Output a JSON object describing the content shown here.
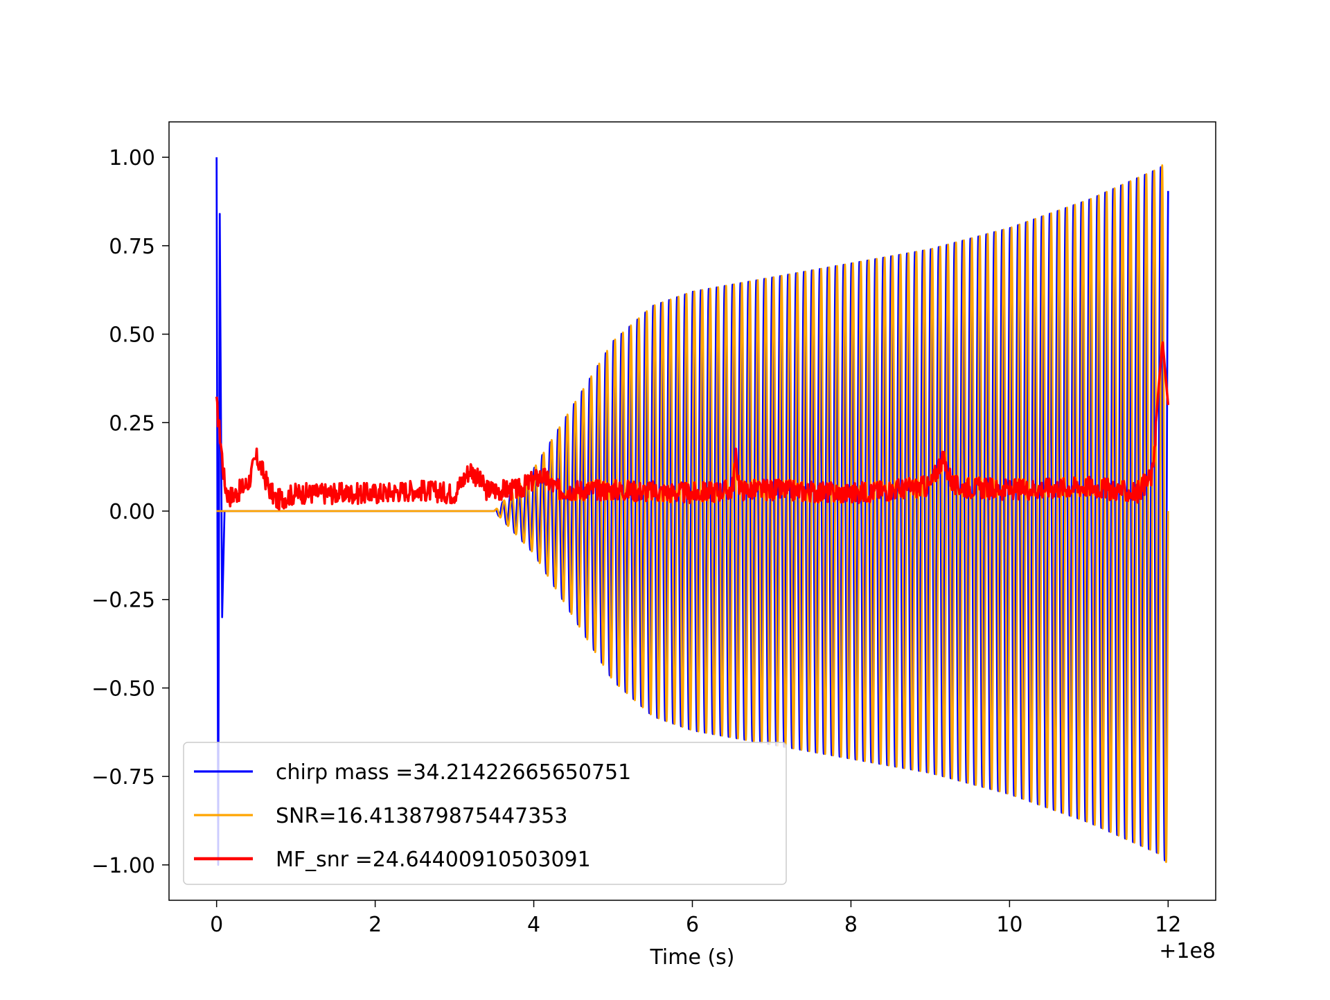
{
  "chart_data": {
    "type": "line",
    "title": "",
    "xlabel": "Time (s)",
    "ylabel": "",
    "x_offset_label": "+1e8",
    "xlim": [
      -0.6,
      12.6
    ],
    "ylim": [
      -1.1,
      1.1
    ],
    "x_ticks": [
      0,
      2,
      4,
      6,
      8,
      10,
      12
    ],
    "x_tick_labels": [
      "0",
      "2",
      "4",
      "6",
      "8",
      "10",
      "12"
    ],
    "y_ticks": [
      1.0,
      0.75,
      0.5,
      0.25,
      0.0,
      -0.25,
      -0.5,
      -0.75,
      -1.0
    ],
    "y_tick_labels": [
      "1.00",
      "0.75",
      "0.50",
      "0.25",
      "0.00",
      "−0.25",
      "−0.50",
      "−0.75",
      "−1.00"
    ],
    "grid": false,
    "legend_position": "lower-left",
    "series": [
      {
        "name": "chirp mass =34.21422665650751",
        "color": "#0000ff",
        "line_width": 1.5,
        "kind": "chirp",
        "cycles": 120,
        "envelope": {
          "t": [
            0,
            3.5,
            4.0,
            4.5,
            5.0,
            5.5,
            6.0,
            7.0,
            8.0,
            9.0,
            10.0,
            11.0,
            11.9,
            12.0
          ],
          "amp": [
            0.0,
            0.0,
            0.12,
            0.3,
            0.48,
            0.58,
            0.62,
            0.66,
            0.7,
            0.74,
            0.8,
            0.88,
            0.97,
            1.0
          ]
        },
        "glitch": {
          "x": [
            0.0,
            0.02,
            0.04,
            0.07,
            0.1
          ],
          "y": [
            1.0,
            -1.0,
            0.84,
            -0.3,
            0.0
          ]
        }
      },
      {
        "name": "SNR=16.413879875447353",
        "color": "#ffa500",
        "line_width": 1.5,
        "kind": "chirp",
        "cycles": 120,
        "envelope": {
          "t": [
            0,
            3.5,
            4.0,
            4.5,
            5.0,
            5.5,
            6.0,
            7.0,
            8.0,
            9.0,
            10.0,
            11.0,
            11.9,
            12.0
          ],
          "amp": [
            0.0,
            0.0,
            0.12,
            0.3,
            0.48,
            0.58,
            0.62,
            0.66,
            0.7,
            0.74,
            0.8,
            0.88,
            0.97,
            1.0
          ]
        }
      },
      {
        "name": "MF_snr =24.64400910503091",
        "color": "#ff0000",
        "line_width": 2,
        "kind": "noise",
        "x": [
          0.0,
          0.05,
          0.1,
          0.15,
          0.25,
          0.4,
          0.5,
          0.55,
          0.65,
          0.75,
          1.0,
          1.5,
          2.0,
          2.5,
          3.0,
          3.2,
          3.4,
          3.8,
          4.1,
          4.3,
          5.0,
          6.0,
          6.5,
          6.55,
          6.6,
          7.0,
          8.0,
          9.0,
          9.15,
          9.3,
          10.0,
          11.0,
          11.6,
          11.8,
          11.88,
          11.93,
          11.96,
          12.0
        ],
        "y": [
          0.3,
          0.2,
          0.08,
          0.04,
          0.05,
          0.08,
          0.15,
          0.13,
          0.07,
          0.03,
          0.05,
          0.05,
          0.05,
          0.06,
          0.05,
          0.12,
          0.06,
          0.06,
          0.1,
          0.06,
          0.06,
          0.05,
          0.06,
          0.15,
          0.06,
          0.06,
          0.05,
          0.07,
          0.15,
          0.07,
          0.06,
          0.07,
          0.05,
          0.1,
          0.35,
          0.48,
          0.4,
          0.3
        ]
      }
    ]
  }
}
